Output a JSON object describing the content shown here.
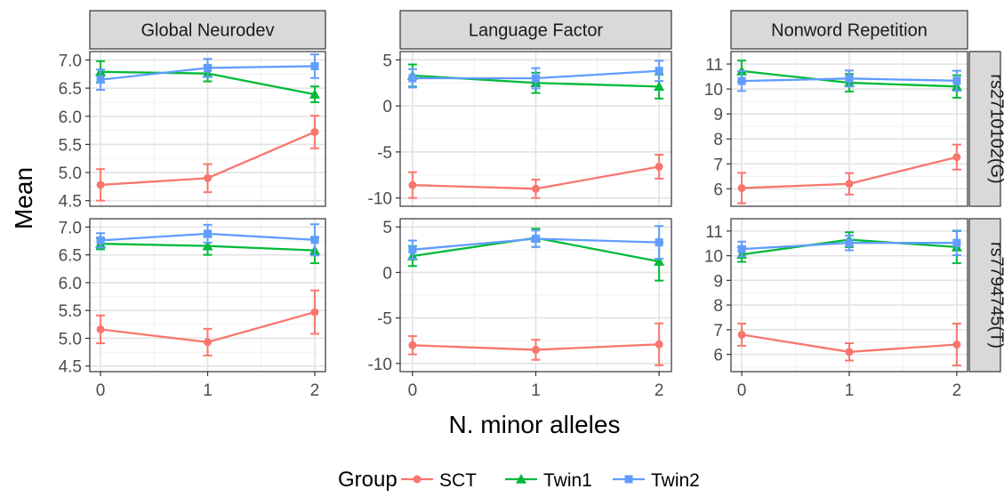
{
  "chart_data": {
    "type": "line",
    "ylabel": "Mean",
    "xlabel": "N. minor alleles",
    "x": [
      0,
      1,
      2
    ],
    "legend": {
      "title": "Group",
      "position": "bottom",
      "items": [
        {
          "name": "SCT",
          "color": "#F8766D",
          "marker": "circle"
        },
        {
          "name": "Twin1",
          "color": "#00BA38",
          "marker": "triangle"
        },
        {
          "name": "Twin2",
          "color": "#619CFF",
          "marker": "square"
        }
      ]
    },
    "columns": [
      {
        "title": "Global Neurodev",
        "ylim": [
          4.4,
          7.15
        ],
        "yticks": [
          4.5,
          5.0,
          5.5,
          6.0,
          6.5,
          7.0
        ],
        "ytick_labels": [
          "4.5",
          "5.0",
          "5.5",
          "6.0",
          "6.5",
          "7.0"
        ]
      },
      {
        "title": "Language Factor",
        "ylim": [
          -10.9,
          5.9
        ],
        "yticks": [
          -10,
          -5,
          0,
          5
        ],
        "ytick_labels": [
          "-10",
          "-5",
          "0",
          "5"
        ]
      },
      {
        "title": "Nonword Repetition",
        "ylim": [
          5.3,
          11.5
        ],
        "yticks": [
          6,
          7,
          8,
          9,
          10,
          11
        ],
        "ytick_labels": [
          "6",
          "7",
          "8",
          "9",
          "10",
          "11"
        ]
      }
    ],
    "rows": [
      {
        "label": "rs2710102(G)"
      },
      {
        "label": "rs7794745(T)"
      }
    ],
    "xticks": [
      0,
      1,
      2
    ],
    "xtick_labels": [
      "0",
      "1",
      "2"
    ],
    "panels": [
      {
        "row": 0,
        "col": 0,
        "series": [
          {
            "name": "SCT",
            "values": [
              4.78,
              4.9,
              5.72
            ],
            "lower": [
              4.5,
              4.65,
              5.43
            ],
            "upper": [
              5.06,
              5.15,
              6.01
            ]
          },
          {
            "name": "Twin1",
            "values": [
              6.79,
              6.76,
              6.39
            ],
            "lower": [
              6.6,
              6.62,
              6.25
            ],
            "upper": [
              6.98,
              6.9,
              6.53
            ]
          },
          {
            "name": "Twin2",
            "values": [
              6.65,
              6.86,
              6.89
            ],
            "lower": [
              6.47,
              6.7,
              6.68
            ],
            "upper": [
              6.83,
              7.02,
              7.1
            ]
          }
        ]
      },
      {
        "row": 0,
        "col": 1,
        "series": [
          {
            "name": "SCT",
            "values": [
              -8.6,
              -9.0,
              -6.6
            ],
            "lower": [
              -10.0,
              -10.0,
              -7.9
            ],
            "upper": [
              -7.2,
              -8.0,
              -5.3
            ]
          },
          {
            "name": "Twin1",
            "values": [
              3.3,
              2.5,
              2.1
            ],
            "lower": [
              2.1,
              1.4,
              0.8
            ],
            "upper": [
              4.5,
              3.6,
              3.4
            ]
          },
          {
            "name": "Twin2",
            "values": [
              3.0,
              3.0,
              3.8
            ],
            "lower": [
              2.0,
              1.9,
              2.7
            ],
            "upper": [
              4.0,
              4.1,
              4.9
            ]
          }
        ]
      },
      {
        "row": 0,
        "col": 2,
        "series": [
          {
            "name": "SCT",
            "values": [
              6.03,
              6.2,
              7.27
            ],
            "lower": [
              5.42,
              5.77,
              6.77
            ],
            "upper": [
              6.64,
              6.63,
              7.77
            ]
          },
          {
            "name": "Twin1",
            "values": [
              10.72,
              10.25,
              10.1
            ],
            "lower": [
              10.3,
              9.9,
              9.65
            ],
            "upper": [
              11.14,
              10.6,
              10.55
            ]
          },
          {
            "name": "Twin2",
            "values": [
              10.32,
              10.42,
              10.33
            ],
            "lower": [
              9.92,
              10.1,
              9.93
            ],
            "upper": [
              10.72,
              10.74,
              10.73
            ]
          }
        ]
      },
      {
        "row": 1,
        "col": 0,
        "series": [
          {
            "name": "SCT",
            "values": [
              5.16,
              4.93,
              5.47
            ],
            "lower": [
              4.91,
              4.69,
              5.08
            ],
            "upper": [
              5.41,
              5.17,
              5.86
            ]
          },
          {
            "name": "Twin1",
            "values": [
              6.7,
              6.66,
              6.58
            ],
            "lower": [
              6.6,
              6.5,
              6.35
            ],
            "upper": [
              6.8,
              6.82,
              6.81
            ]
          },
          {
            "name": "Twin2",
            "values": [
              6.76,
              6.88,
              6.77
            ],
            "lower": [
              6.63,
              6.72,
              6.49
            ],
            "upper": [
              6.89,
              7.04,
              7.05
            ]
          }
        ]
      },
      {
        "row": 1,
        "col": 1,
        "series": [
          {
            "name": "SCT",
            "values": [
              -8.0,
              -8.5,
              -7.9
            ],
            "lower": [
              -9.0,
              -9.6,
              -10.2
            ],
            "upper": [
              -7.0,
              -7.4,
              -5.6
            ]
          },
          {
            "name": "Twin1",
            "values": [
              1.8,
              3.8,
              1.2
            ],
            "lower": [
              0.7,
              2.8,
              -0.9
            ],
            "upper": [
              2.9,
              4.8,
              3.3
            ]
          },
          {
            "name": "Twin2",
            "values": [
              2.5,
              3.7,
              3.3
            ],
            "lower": [
              1.5,
              2.8,
              1.5
            ],
            "upper": [
              3.5,
              4.6,
              5.1
            ]
          }
        ]
      },
      {
        "row": 1,
        "col": 2,
        "series": [
          {
            "name": "SCT",
            "values": [
              6.8,
              6.1,
              6.4
            ],
            "lower": [
              6.35,
              5.75,
              5.55
            ],
            "upper": [
              7.25,
              6.45,
              7.25
            ]
          },
          {
            "name": "Twin1",
            "values": [
              10.05,
              10.65,
              10.35
            ],
            "lower": [
              9.75,
              10.35,
              9.7
            ],
            "upper": [
              10.35,
              10.95,
              11.0
            ]
          },
          {
            "name": "Twin2",
            "values": [
              10.27,
              10.52,
              10.52
            ],
            "lower": [
              9.97,
              10.22,
              10.02
            ],
            "upper": [
              10.57,
              10.82,
              11.02
            ]
          }
        ]
      }
    ]
  }
}
